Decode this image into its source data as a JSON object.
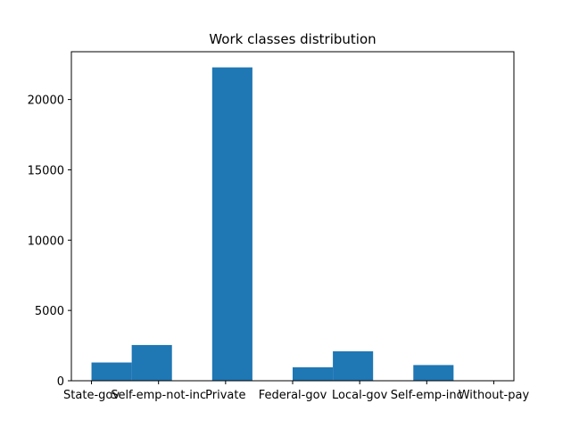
{
  "chart_data": {
    "type": "bar",
    "title": "Work classes distribution",
    "xlabel": "",
    "ylabel": "",
    "bar_color": "#1f77b4",
    "grid": false,
    "legend": "none",
    "bins": {
      "edges": [
        0,
        0.6,
        1.2,
        1.8,
        2.4,
        3.0,
        3.6,
        4.2,
        4.8,
        5.4,
        6.0
      ],
      "counts": [
        1298,
        2541,
        0,
        22286,
        0,
        960,
        2093,
        0,
        1116,
        14
      ]
    },
    "xlim": [
      -0.3,
      6.3
    ],
    "ylim": [
      0,
      23400
    ],
    "x_ticks": [
      {
        "value": 0,
        "label": "State-gov"
      },
      {
        "value": 1,
        "label": "Self-emp-not-inc"
      },
      {
        "value": 2,
        "label": "Private"
      },
      {
        "value": 3,
        "label": "Federal-gov"
      },
      {
        "value": 4,
        "label": "Local-gov"
      },
      {
        "value": 5,
        "label": "Self-emp-inc"
      },
      {
        "value": 6,
        "label": "Without-pay"
      }
    ],
    "y_ticks": [
      {
        "value": 0,
        "label": "0"
      },
      {
        "value": 5000,
        "label": "5000"
      },
      {
        "value": 10000,
        "label": "10000"
      },
      {
        "value": 15000,
        "label": "15000"
      },
      {
        "value": 20000,
        "label": "20000"
      }
    ]
  }
}
